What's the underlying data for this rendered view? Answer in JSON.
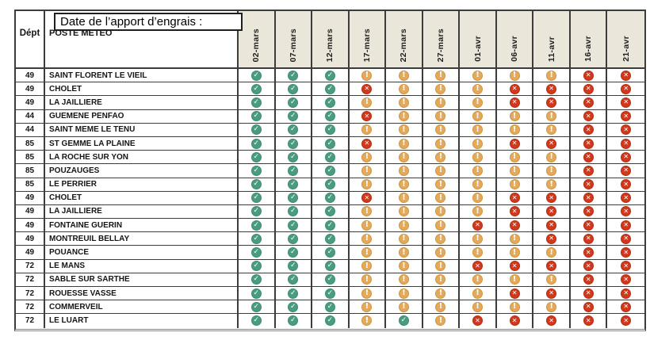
{
  "chart_data": {
    "type": "table",
    "title": "Date de l’apport d’engrais :",
    "columns": {
      "dept": "Dépt",
      "station": "POSTE METEO"
    },
    "dates": [
      "02-mars",
      "07-mars",
      "12-mars",
      "17-mars",
      "22-mars",
      "27-mars",
      "01-avr",
      "06-avr",
      "11-avr",
      "16-avr",
      "21-avr"
    ],
    "statuses": {
      "ok": {
        "label": "favorable",
        "glyph": "✓",
        "icon_name": "check-circle-icon",
        "color": "#4a9c80",
        "border": "#3d8a70"
      },
      "warn": {
        "label": "attention",
        "glyph": "!",
        "icon_name": "warning-circle-icon",
        "color": "#e3aa5c",
        "border": "#cf9440"
      },
      "bad": {
        "label": "defavorable",
        "glyph": "✕",
        "icon_name": "cross-circle-icon",
        "color": "#d0391e",
        "border": "#b22e13"
      }
    },
    "rows": [
      {
        "dept": "49",
        "station": "SAINT FLORENT LE VIEIL",
        "status": [
          "ok",
          "ok",
          "ok",
          "warn",
          "warn",
          "warn",
          "warn",
          "warn",
          "warn",
          "bad",
          "bad"
        ]
      },
      {
        "dept": "49",
        "station": "CHOLET",
        "status": [
          "ok",
          "ok",
          "ok",
          "bad",
          "warn",
          "warn",
          "warn",
          "bad",
          "bad",
          "bad",
          "bad"
        ]
      },
      {
        "dept": "49",
        "station": "LA JAILLIERE",
        "status": [
          "ok",
          "ok",
          "ok",
          "warn",
          "warn",
          "warn",
          "warn",
          "bad",
          "bad",
          "bad",
          "bad"
        ]
      },
      {
        "dept": "44",
        "station": "GUEMENE PENFAO",
        "status": [
          "ok",
          "ok",
          "ok",
          "bad",
          "warn",
          "warn",
          "warn",
          "warn",
          "warn",
          "bad",
          "bad"
        ]
      },
      {
        "dept": "44",
        "station": "SAINT MEME LE TENU",
        "status": [
          "ok",
          "ok",
          "ok",
          "warn",
          "warn",
          "warn",
          "warn",
          "warn",
          "warn",
          "bad",
          "bad"
        ]
      },
      {
        "dept": "85",
        "station": "ST GEMME LA PLAINE",
        "status": [
          "ok",
          "ok",
          "ok",
          "bad",
          "warn",
          "warn",
          "warn",
          "bad",
          "bad",
          "bad",
          "bad"
        ]
      },
      {
        "dept": "85",
        "station": "LA ROCHE SUR YON",
        "status": [
          "ok",
          "ok",
          "ok",
          "warn",
          "warn",
          "warn",
          "warn",
          "warn",
          "warn",
          "bad",
          "bad"
        ]
      },
      {
        "dept": "85",
        "station": "POUZAUGES",
        "status": [
          "ok",
          "ok",
          "ok",
          "warn",
          "warn",
          "warn",
          "warn",
          "warn",
          "warn",
          "bad",
          "bad"
        ]
      },
      {
        "dept": "85",
        "station": "LE PERRIER",
        "status": [
          "ok",
          "ok",
          "ok",
          "warn",
          "warn",
          "warn",
          "warn",
          "warn",
          "warn",
          "bad",
          "bad"
        ]
      },
      {
        "dept": "49",
        "station": "CHOLET",
        "status": [
          "ok",
          "ok",
          "ok",
          "bad",
          "warn",
          "warn",
          "warn",
          "bad",
          "bad",
          "bad",
          "bad"
        ]
      },
      {
        "dept": "49",
        "station": "LA JAILLIERE",
        "status": [
          "ok",
          "ok",
          "ok",
          "warn",
          "warn",
          "warn",
          "warn",
          "bad",
          "bad",
          "bad",
          "bad"
        ]
      },
      {
        "dept": "49",
        "station": "FONTAINE GUERIN",
        "status": [
          "ok",
          "ok",
          "ok",
          "warn",
          "warn",
          "warn",
          "bad",
          "bad",
          "bad",
          "bad",
          "bad"
        ]
      },
      {
        "dept": "49",
        "station": "MONTREUIL BELLAY",
        "status": [
          "ok",
          "ok",
          "ok",
          "warn",
          "warn",
          "warn",
          "warn",
          "warn",
          "bad",
          "bad",
          "bad"
        ]
      },
      {
        "dept": "49",
        "station": "POUANCE",
        "status": [
          "ok",
          "ok",
          "ok",
          "warn",
          "warn",
          "warn",
          "warn",
          "warn",
          "warn",
          "bad",
          "bad"
        ]
      },
      {
        "dept": "72",
        "station": "LE MANS",
        "status": [
          "ok",
          "ok",
          "ok",
          "warn",
          "warn",
          "warn",
          "bad",
          "bad",
          "bad",
          "bad",
          "bad"
        ]
      },
      {
        "dept": "72",
        "station": "SABLE SUR SARTHE",
        "status": [
          "ok",
          "ok",
          "ok",
          "warn",
          "warn",
          "warn",
          "warn",
          "warn",
          "warn",
          "bad",
          "bad"
        ]
      },
      {
        "dept": "72",
        "station": "ROUESSE VASSE",
        "status": [
          "ok",
          "ok",
          "ok",
          "warn",
          "warn",
          "warn",
          "warn",
          "bad",
          "bad",
          "bad",
          "bad"
        ]
      },
      {
        "dept": "72",
        "station": "COMMERVEIL",
        "status": [
          "ok",
          "ok",
          "ok",
          "warn",
          "warn",
          "warn",
          "warn",
          "warn",
          "warn",
          "bad",
          "bad"
        ]
      },
      {
        "dept": "72",
        "station": "LE LUART",
        "status": [
          "ok",
          "ok",
          "ok",
          "warn",
          "ok",
          "warn",
          "bad",
          "bad",
          "bad",
          "bad",
          "bad"
        ]
      }
    ]
  }
}
